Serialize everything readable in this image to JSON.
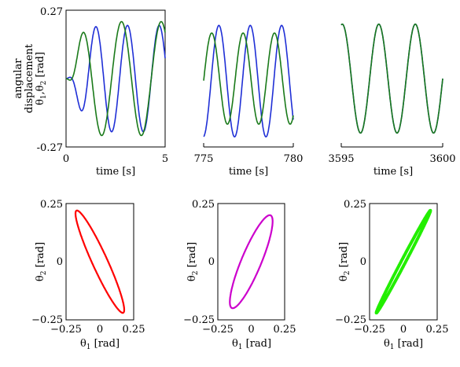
{
  "chart_data": [
    {
      "type": "line",
      "xlabel": "time [s]",
      "ylabel_lines": [
        "angular",
        "displacement"
      ],
      "ylabel_sym": {
        "t1": "θ",
        "s1": "1",
        "sep": ",",
        "t2": "θ",
        "s2": "2",
        "unit": " [rad]"
      },
      "xlim": [
        0,
        5
      ],
      "ylim": [
        -0.27,
        0.27
      ],
      "xticks": [
        "0",
        "5"
      ],
      "yticks": [
        "0.27",
        "-0.27"
      ],
      "series": [
        {
          "color": "#1f2fd6",
          "shape": "rise-then-sine",
          "amplitude": 0.21,
          "period": 1.6,
          "phase_ref": 0.95,
          "sign": -1
        },
        {
          "color": "#1a7a1a",
          "shape": "rise-then-sine",
          "amplitude": 0.225,
          "period": 2.0,
          "phase_ref": 0.8,
          "sign": 1
        }
      ]
    },
    {
      "type": "line",
      "xlabel": "time [s]",
      "xlim": [
        775,
        780
      ],
      "ylim": [
        -0.27,
        0.27
      ],
      "xticks": [
        "775",
        "780"
      ],
      "series": [
        {
          "color": "#1f2fd6",
          "shape": "sine",
          "amplitude": 0.22,
          "center": -0.01,
          "period": 1.75,
          "peak_at": 777.6
        },
        {
          "color": "#1a7a1a",
          "shape": "sine",
          "amplitude": 0.18,
          "center": 0.0,
          "period": 1.75,
          "peak_at": 777.2
        }
      ]
    },
    {
      "type": "line",
      "xlabel": "time [s]",
      "xlim": [
        3595,
        3600
      ],
      "ylim": [
        -0.27,
        0.27
      ],
      "xticks": [
        "3595",
        "3600"
      ],
      "series": [
        {
          "color": "#1f2fd6",
          "shape": "sine",
          "amplitude": 0.215,
          "center": 0.0,
          "period": 1.8,
          "peak_at": 3596.85
        },
        {
          "color": "#1a7a1a",
          "shape": "sine",
          "amplitude": 0.215,
          "center": 0.0,
          "period": 1.8,
          "peak_at": 3596.85
        }
      ]
    },
    {
      "type": "scatter",
      "xlabel_sym": {
        "t": "θ",
        "s": "1",
        "unit": " [rad]"
      },
      "ylabel_sym": {
        "t": "θ",
        "s": "2",
        "unit": " [rad]"
      },
      "xlim": [
        -0.25,
        0.25
      ],
      "ylim": [
        -0.25,
        0.25
      ],
      "xticks": [
        "−0.25",
        "0",
        "0.25"
      ],
      "yticks": [
        "0.25",
        "0",
        "−0.25"
      ],
      "series": [
        {
          "color": "#ff0000",
          "shape": "ellipse",
          "x_amp": 0.18,
          "y_amp": 0.22,
          "phase_deg": 160
        }
      ]
    },
    {
      "type": "scatter",
      "xlabel_sym": {
        "t": "θ",
        "s": "1",
        "unit": " [rad]"
      },
      "ylabel_sym": {
        "t": "θ",
        "s": "2",
        "unit": " [rad]"
      },
      "xlim": [
        -0.25,
        0.25
      ],
      "ylim": [
        -0.25,
        0.25
      ],
      "xticks": [
        "−0.25",
        "0",
        "0.25"
      ],
      "yticks": [
        "0.25",
        "0",
        "−0.25"
      ],
      "series": [
        {
          "color": "#cc00cc",
          "shape": "ellipse",
          "x_amp": 0.16,
          "y_amp": 0.2,
          "phase_deg": 30
        }
      ]
    },
    {
      "type": "scatter",
      "xlabel_sym": {
        "t": "θ",
        "s": "1",
        "unit": " [rad]"
      },
      "ylabel_sym": {
        "t": "θ",
        "s": "2",
        "unit": " [rad]"
      },
      "xlim": [
        -0.25,
        0.25
      ],
      "ylim": [
        -0.25,
        0.25
      ],
      "xticks": [
        "−0.25",
        "0",
        "0.25"
      ],
      "yticks": [
        "0.25",
        "0",
        "−0.25"
      ],
      "series": [
        {
          "color": "#22ee00",
          "shape": "ellipse",
          "x_amp": 0.2,
          "y_amp": 0.22,
          "phase_deg": 5
        }
      ]
    }
  ]
}
